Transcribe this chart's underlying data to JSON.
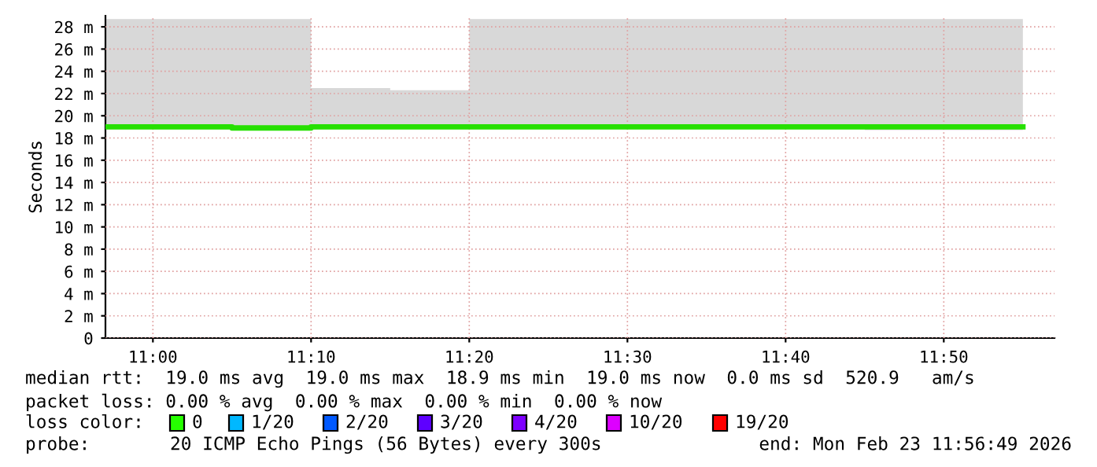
{
  "chart_data": {
    "type": "step",
    "ylabel": "Seconds",
    "x": [
      "2026-02-23T10:57",
      "2026-02-23T11:00",
      "2026-02-23T11:05",
      "2026-02-23T11:10",
      "2026-02-23T11:15",
      "2026-02-23T11:20",
      "2026-02-23T11:25",
      "2026-02-23T11:30",
      "2026-02-23T11:35",
      "2026-02-23T11:40",
      "2026-02-23T11:45",
      "2026-02-23T11:50",
      "2026-02-23T11:55"
    ],
    "series": [
      {
        "color": "#26e000",
        "values": [
          19.0,
          19.0,
          18.9,
          19.0,
          19.0,
          19.0,
          19.0,
          19.0,
          19.0,
          19.0,
          19.0,
          19.0,
          19.0
        ],
        "lower": [
          18.9,
          18.8,
          18.9,
          18.9,
          18.9,
          18.9,
          18.9,
          18.9,
          18.9,
          18.9,
          18.7,
          18.7,
          18.7
        ],
        "upper": [
          28.7,
          28.7,
          28.7,
          22.5,
          22.3,
          28.7,
          28.7,
          28.7,
          28.7,
          28.7,
          28.7,
          28.7,
          28.7
        ]
      }
    ],
    "xlim": [
      "2026-02-23T10:57",
      "2026-02-23T11:57"
    ],
    "xticks": [
      {
        "value": "2026-02-23T11:00",
        "label": "11:00"
      },
      {
        "value": "2026-02-23T11:10",
        "label": "11:10"
      },
      {
        "value": "2026-02-23T11:20",
        "label": "11:20"
      },
      {
        "value": "2026-02-23T11:30",
        "label": "11:30"
      },
      {
        "value": "2026-02-23T11:40",
        "label": "11:40"
      },
      {
        "value": "2026-02-23T11:50",
        "label": "11:50"
      }
    ],
    "ylim": [
      0,
      29
    ],
    "yticks": [
      0,
      {
        "value": 2,
        "label": "2 m"
      },
      {
        "value": 4,
        "label": "4 m"
      },
      {
        "value": 6,
        "label": "6 m"
      },
      {
        "value": 8,
        "label": "8 m"
      },
      {
        "value": 10,
        "label": "10 m"
      },
      {
        "value": 12,
        "label": "12 m"
      },
      {
        "value": 14,
        "label": "14 m"
      },
      {
        "value": 16,
        "label": "16 m"
      },
      {
        "value": 18,
        "label": "18 m"
      },
      {
        "value": 20,
        "label": "20 m"
      },
      {
        "value": 22,
        "label": "22 m"
      },
      {
        "value": 24,
        "label": "24 m"
      },
      {
        "value": 26,
        "label": "26 m"
      },
      {
        "value": 28,
        "label": "28 m"
      }
    ],
    "grid": true,
    "legend": false,
    "annotations": [
      "median rtt:  19.0 ms avg  19.0 ms max  18.9 ms min  19.0 ms now  0.0 ms sd  520.9   am/s",
      "packet loss: 0.00 % avg  0.00 % max  0.00 % min  0.00 % now",
      "loss color:",
      "0",
      "1/20",
      "2/20",
      "3/20",
      "4/20",
      "10/20",
      "19/20",
      "probe:",
      "20 ICMP Echo Pings (56 Bytes) every 300s",
      "end: Mon Feb 23 11:56:49 2026"
    ]
  }
}
